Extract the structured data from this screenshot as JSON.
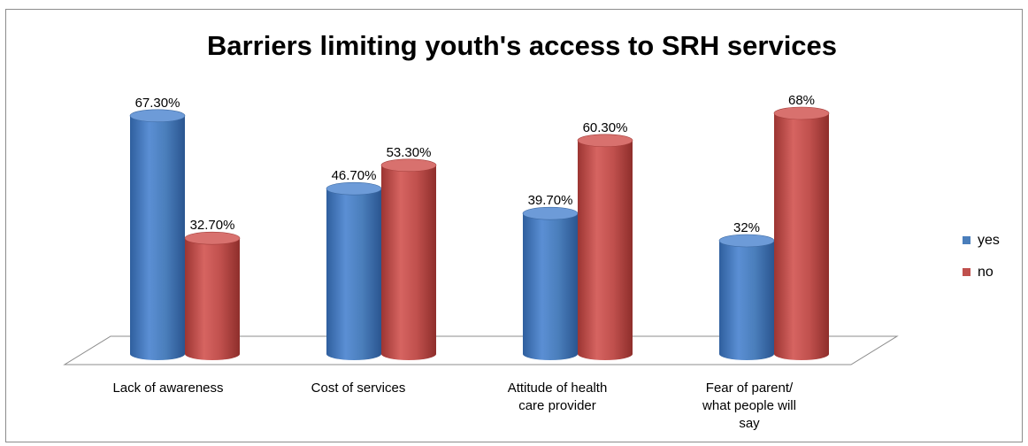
{
  "chart_data": {
    "type": "bar",
    "title": "Barriers limiting youth's access to SRH services",
    "categories": [
      [
        "Lack of awareness"
      ],
      [
        "Cost of services"
      ],
      [
        "Attitude of health",
        "care provider"
      ],
      [
        "Fear of parent/",
        "what people will",
        "say"
      ]
    ],
    "series": [
      {
        "name": "yes",
        "color": "#4a7ebb",
        "values": [
          67.3,
          46.7,
          39.7,
          32
        ],
        "labels": [
          "67.30%",
          "46.70%",
          "39.70%",
          "32%"
        ]
      },
      {
        "name": "no",
        "color": "#c0504d",
        "values": [
          32.7,
          53.3,
          60.3,
          68
        ],
        "labels": [
          "32.70%",
          "53.30%",
          "60.30%",
          "68%"
        ]
      }
    ],
    "ylim": [
      0,
      70
    ],
    "grid": false,
    "legend_position": "right",
    "style": "3d-cylinder"
  }
}
